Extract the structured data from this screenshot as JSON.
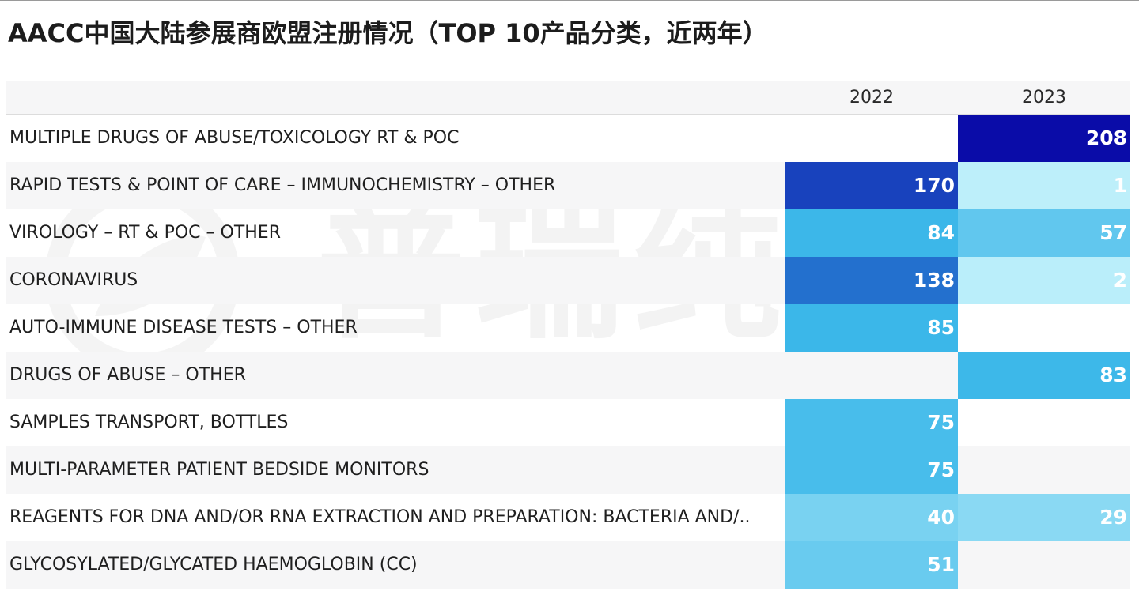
{
  "title": "AACC中国大陆参展商欧盟注册情况（TOP 10产品分类，近两年）",
  "watermark": "普瑞纯证",
  "chart_data": {
    "type": "table",
    "style": "heatmap",
    "columns": [
      "2022",
      "2023"
    ],
    "rows": [
      {
        "label": "MULTIPLE DRUGS OF ABUSE/TOXICOLOGY RT & POC",
        "values": [
          null,
          208
        ]
      },
      {
        "label": "RAPID TESTS & POINT OF CARE – IMMUNOCHEMISTRY – OTHER",
        "values": [
          170,
          1
        ]
      },
      {
        "label": "VIROLOGY – RT & POC – OTHER",
        "values": [
          84,
          57
        ]
      },
      {
        "label": "CORONAVIRUS",
        "values": [
          138,
          2
        ]
      },
      {
        "label": "AUTO-IMMUNE DISEASE TESTS – OTHER",
        "values": [
          85,
          null
        ]
      },
      {
        "label": "DRUGS OF ABUSE – OTHER",
        "values": [
          null,
          83
        ]
      },
      {
        "label": "SAMPLES TRANSPORT, BOTTLES",
        "values": [
          75,
          null
        ]
      },
      {
        "label": "MULTI-PARAMETER PATIENT BEDSIDE MONITORS",
        "values": [
          75,
          null
        ]
      },
      {
        "label": "REAGENTS FOR DNA AND/OR RNA EXTRACTION AND PREPARATION: BACTERIA AND/..",
        "values": [
          40,
          29
        ]
      },
      {
        "label": "GLYCOSYLATED/GLYCATED HAEMOGLOBIN (CC)",
        "values": [
          51,
          null
        ]
      }
    ],
    "color_scale": {
      "low": "#bdeffa",
      "mid": "#34b4e8",
      "high": "#0a0ca8",
      "min_value": 1,
      "max_value": 208
    }
  }
}
